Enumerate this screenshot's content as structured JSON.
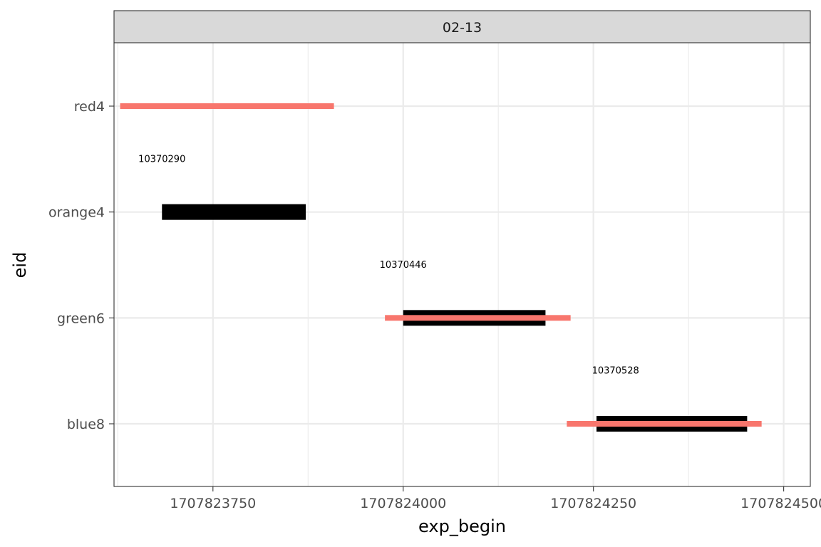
{
  "chart_data": {
    "type": "gantt",
    "facet_label": "02-13",
    "xlabel": "exp_begin",
    "ylabel": "eid",
    "xlim": [
      1707823620,
      1707824535
    ],
    "x_ticks": [
      1707823750,
      1707824000,
      1707824250,
      1707824500
    ],
    "x_tick_labels": [
      "1707823750",
      "1707824000",
      "1707824250",
      "1707824500"
    ],
    "x_minor_ticks": [
      1707823625,
      1707823875,
      1707824125,
      1707824375
    ],
    "categories": [
      "red4",
      "orange4",
      "green6",
      "blue8"
    ],
    "grid": true,
    "series": [
      {
        "color": "#F8766D",
        "segments": [
          {
            "eid": "red4",
            "start": 1707823628,
            "end": 1707823909
          },
          {
            "eid": "green6",
            "start": 1707823976,
            "end": 1707824220
          },
          {
            "eid": "blue8",
            "start": 1707824215,
            "end": 1707824471
          }
        ]
      },
      {
        "color": "#000000",
        "segments": [
          {
            "eid": "orange4",
            "start": 1707823683,
            "end": 1707823872
          },
          {
            "eid": "green6",
            "start": 1707824000,
            "end": 1707824187
          },
          {
            "eid": "blue8",
            "start": 1707824254,
            "end": 1707824452
          }
        ]
      }
    ],
    "annotations": [
      {
        "text": "10370290",
        "x": 1707823683,
        "eid_between": [
          "red4",
          "orange4"
        ]
      },
      {
        "text": "10370446",
        "x": 1707824000,
        "eid_between": [
          "orange4",
          "green6"
        ]
      },
      {
        "text": "10370528",
        "x": 1707824279,
        "eid_between": [
          "green6",
          "blue8"
        ]
      }
    ]
  }
}
